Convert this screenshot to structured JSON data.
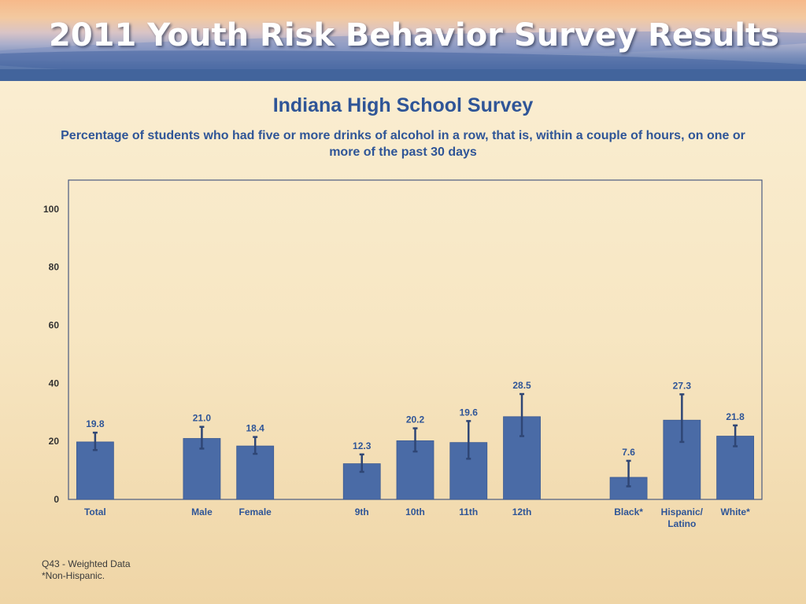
{
  "header": {
    "banner_title": "2011 Youth Risk Behavior Survey Results"
  },
  "chart_data": {
    "type": "bar",
    "title": "Indiana High School Survey",
    "subtitle": "Percentage of students who had five or more drinks of alcohol in a row, that is, within a couple of hours, on one or more of the past 30 days",
    "categories": [
      "Total",
      "Male",
      "Female",
      "9th",
      "10th",
      "11th",
      "12th",
      "Black*",
      "Hispanic/\nLatino",
      "White*"
    ],
    "values": [
      19.8,
      21.0,
      18.4,
      12.3,
      20.2,
      19.6,
      28.5,
      7.6,
      27.3,
      21.8
    ],
    "value_labels": [
      "19.8",
      "21.0",
      "18.4",
      "12.3",
      "20.2",
      "19.6",
      "28.5",
      "7.6",
      "27.3",
      "21.8"
    ],
    "error_low": [
      17.0,
      17.5,
      15.7,
      9.5,
      16.5,
      14.0,
      21.8,
      4.5,
      19.8,
      18.3
    ],
    "error_high": [
      23.0,
      25.0,
      21.5,
      15.5,
      24.5,
      27.0,
      36.3,
      13.3,
      36.2,
      25.5
    ],
    "slots": [
      0,
      2,
      3,
      5,
      6,
      7,
      8,
      10,
      11,
      12
    ],
    "slot_count": 13,
    "ylim": [
      0,
      110
    ],
    "yticks": [
      0,
      20,
      40,
      60,
      80,
      100
    ],
    "ytick_labels": [
      "0",
      "20",
      "40",
      "60",
      "80",
      "100"
    ],
    "grid": false,
    "bar_color": "#4a6ba6",
    "error_color": "#2f4675",
    "text_color": "#2f5597"
  },
  "footnotes": {
    "line1": "Q43 - Weighted Data",
    "line2": "*Non-Hispanic."
  }
}
